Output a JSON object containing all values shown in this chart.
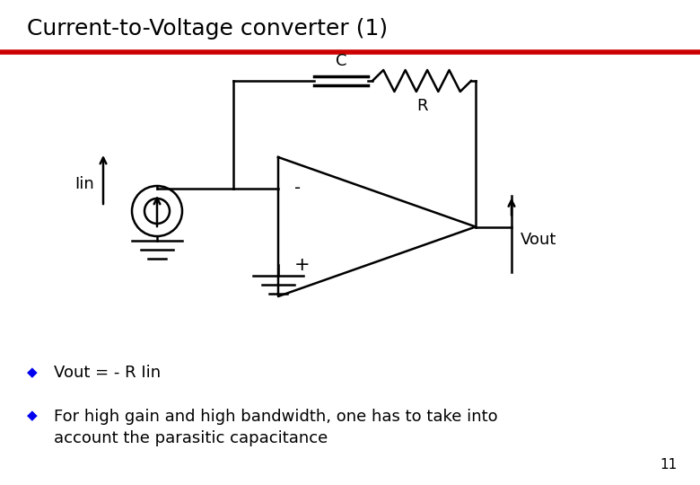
{
  "title": "Current-to-Voltage converter (1)",
  "title_fontsize": 18,
  "title_fontweight": "normal",
  "red_line_color": "#CC0000",
  "circuit_color": "black",
  "bullet_color": "#0000EE",
  "bullet1": "Vout = - R Iin",
  "bullet2": "For high gain and high bandwidth, one has to take into\naccount the parasitic capacitance",
  "page_number": "11",
  "bg_color": "white",
  "label_C": "C",
  "label_R": "R",
  "label_Iin": "Iin",
  "label_Vout": "Vout",
  "label_minus": "-",
  "label_plus": "+"
}
